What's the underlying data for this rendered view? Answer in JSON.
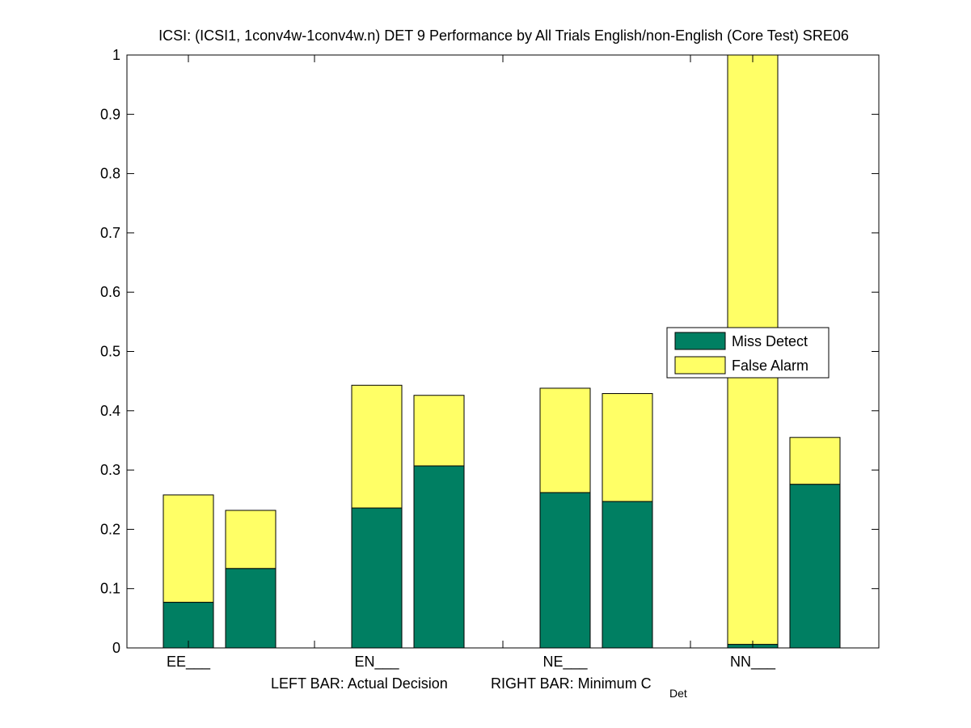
{
  "chart_data": {
    "type": "bar",
    "stacked": true,
    "title": "ICSI: (ICSI1, 1conv4w-1conv4w.n) DET 9 Performance by All Trials English/non-English (Core Test) SRE06",
    "xlabel": {
      "left_text": "LEFT BAR: Actual Decision",
      "right_text": "RIGHT BAR: Minimum C",
      "right_subscript": "Det"
    },
    "ylabel": "",
    "ylim": [
      0,
      1
    ],
    "yticks": [
      "0",
      "0.1",
      "0.2",
      "0.3",
      "0.4",
      "0.5",
      "0.6",
      "0.7",
      "0.8",
      "0.9",
      "1"
    ],
    "categories": [
      "EE___",
      "EN___",
      "NE___",
      "NN___"
    ],
    "bar_roles": [
      "Actual Decision",
      "Minimum C_Det"
    ],
    "series": [
      {
        "name": "Miss Detect",
        "color": "#007f62",
        "values": [
          [
            0.077,
            0.134
          ],
          [
            0.236,
            0.307
          ],
          [
            0.262,
            0.247
          ],
          [
            0.006,
            0.276
          ]
        ]
      },
      {
        "name": "False Alarm",
        "color": "#ffff66",
        "values": [
          [
            0.181,
            0.098
          ],
          [
            0.207,
            0.119
          ],
          [
            0.176,
            0.182
          ],
          [
            0.994,
            0.079
          ]
        ]
      }
    ],
    "legend": {
      "placement": "center-right"
    },
    "grid": false
  }
}
